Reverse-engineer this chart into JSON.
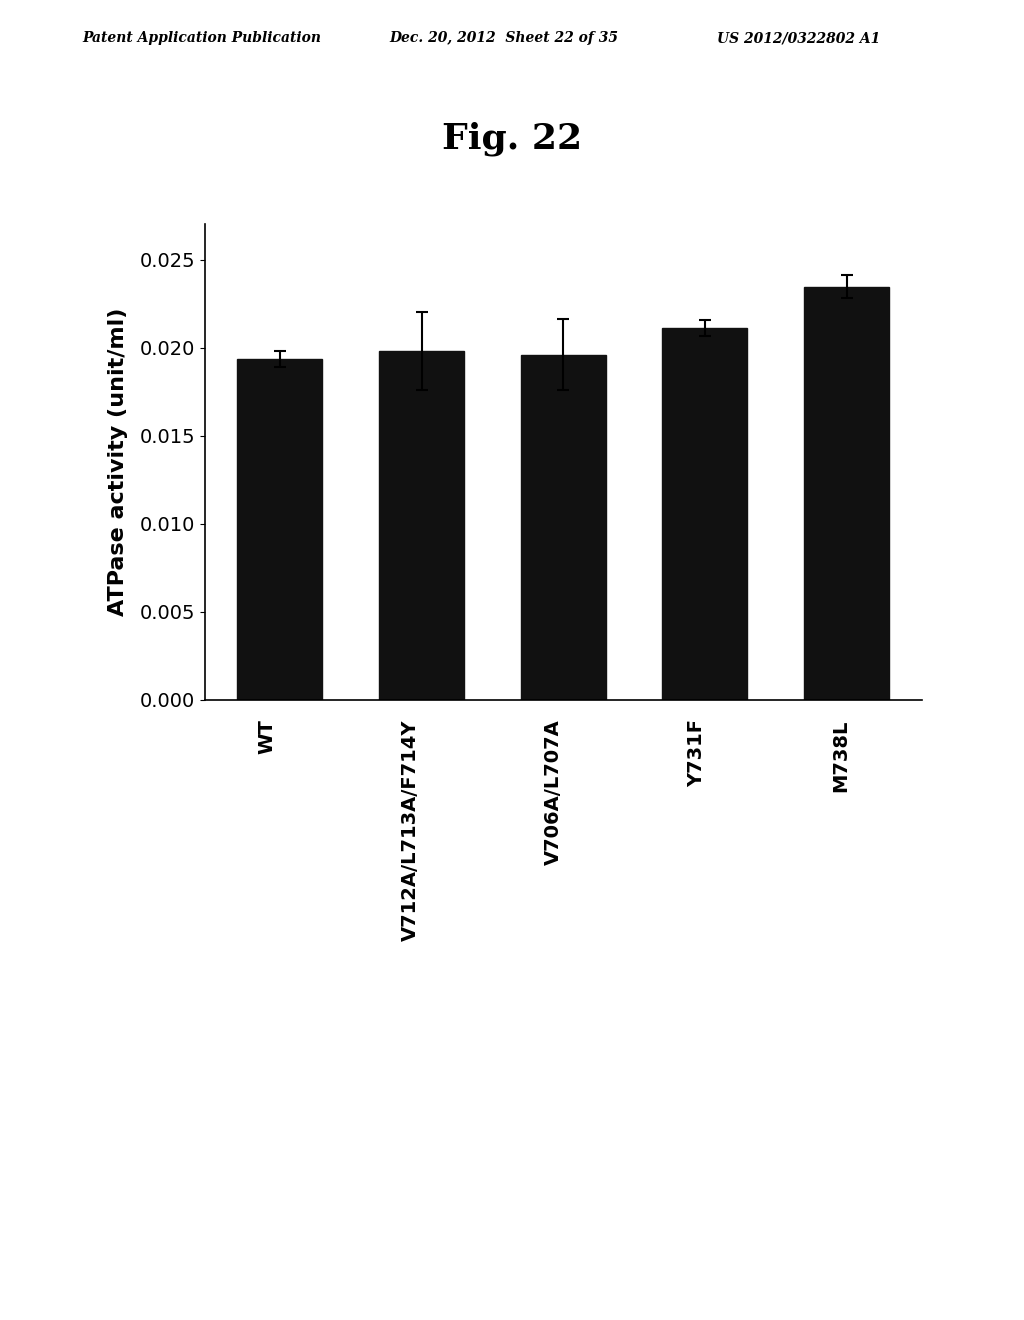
{
  "title": "Fig. 22",
  "ylabel": "ATPase activity (unit/ml)",
  "categories": [
    "WT",
    "V712A/L713A/F714Y",
    "V706A/L707A",
    "Y731F",
    "M738L"
  ],
  "values": [
    0.01935,
    0.0198,
    0.0196,
    0.0211,
    0.02345
  ],
  "errors": [
    0.00045,
    0.0022,
    0.002,
    0.00045,
    0.00065
  ],
  "bar_color": "#111111",
  "bar_width": 0.6,
  "ylim": [
    0.0,
    0.027
  ],
  "yticks": [
    0.0,
    0.005,
    0.01,
    0.015,
    0.02,
    0.025
  ],
  "background_color": "#ffffff",
  "header_text": "Patent Application Publication",
  "header_date": "Dec. 20, 2012  Sheet 22 of 35",
  "header_patent": "US 2012/0322802 A1",
  "title_fontsize": 26,
  "axis_fontsize": 16,
  "tick_fontsize": 14,
  "label_fontsize": 14
}
